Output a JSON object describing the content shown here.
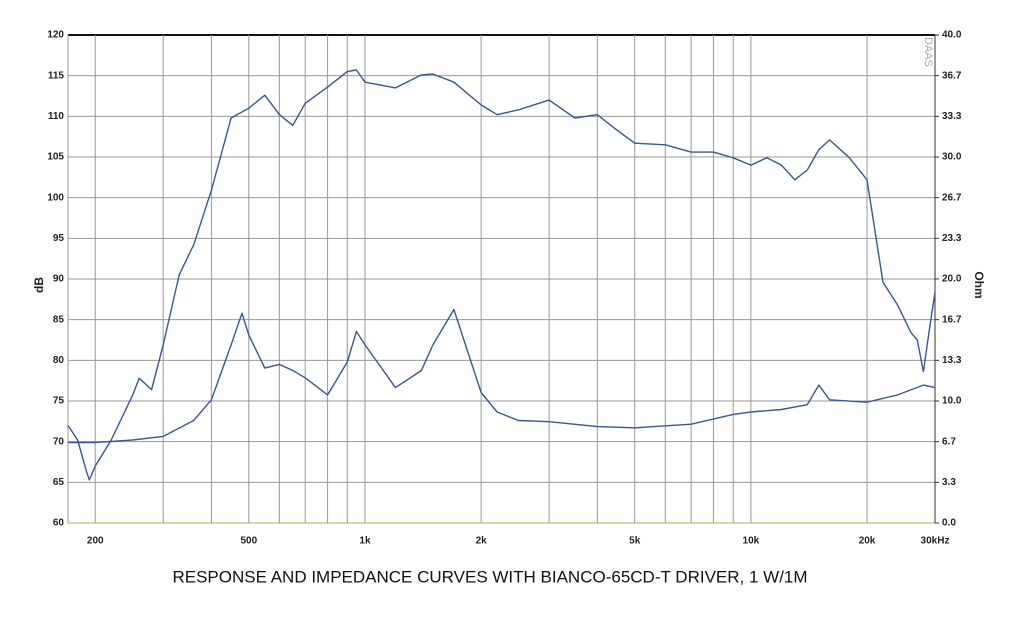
{
  "chart_data": {
    "type": "line",
    "title": "RESPONSE AND IMPEDANCE CURVES WITH BIANCO-65CD-T DRIVER, 1 W/1M",
    "y_label": "dB",
    "y2_label": "Ohm",
    "watermark": "DAAS",
    "xscale": "log",
    "grid": true,
    "xlim": [
      170,
      30000
    ],
    "xticks": [
      200,
      500,
      {
        "value": 1000,
        "label": "1k"
      },
      {
        "value": 2000,
        "label": "2k"
      },
      {
        "value": 5000,
        "label": "5k"
      },
      {
        "value": 10000,
        "label": "10k"
      },
      {
        "value": 20000,
        "label": "20k"
      },
      {
        "value": 30000,
        "label": "30kHz"
      }
    ],
    "xminor": [
      300,
      400,
      600,
      700,
      800,
      900,
      3000,
      4000,
      6000,
      7000,
      8000,
      9000
    ],
    "ylim": [
      60,
      120
    ],
    "yticks": [
      60,
      65,
      70,
      75,
      80,
      85,
      90,
      95,
      100,
      105,
      110,
      115,
      120
    ],
    "y2lim": [
      0,
      40
    ],
    "y2ticks": [
      {
        "value": 0,
        "label": "0.0"
      },
      {
        "value": 3.333,
        "label": "3.3"
      },
      {
        "value": 6.667,
        "label": "6.7"
      },
      {
        "value": 10,
        "label": "10.0"
      },
      {
        "value": 13.333,
        "label": "13.3"
      },
      {
        "value": 16.667,
        "label": "16.7"
      },
      {
        "value": 20,
        "label": "20.0"
      },
      {
        "value": 23.333,
        "label": "23.3"
      },
      {
        "value": 26.667,
        "label": "26.7"
      },
      {
        "value": 30,
        "label": "30.0"
      },
      {
        "value": 33.333,
        "label": "33.3"
      },
      {
        "value": 36.667,
        "label": "36.7"
      },
      {
        "value": 40,
        "label": "40.0"
      }
    ],
    "series": [
      {
        "color": "#3a5696",
        "x": [
          170,
          180,
          190,
          193,
          200,
          220,
          250,
          260,
          280,
          300,
          330,
          360,
          400,
          450,
          500,
          550,
          600,
          650,
          700,
          800,
          900,
          950,
          1000,
          1200,
          1400,
          1500,
          1700,
          2000,
          2200,
          2500,
          3000,
          3500,
          4000,
          4500,
          5000,
          6000,
          7000,
          8000,
          9000,
          10000,
          11000,
          12000,
          13000,
          14000,
          15000,
          16000,
          18000,
          20000,
          22000,
          24000,
          26000,
          27000,
          28000,
          29000,
          30000
        ],
        "values": [
          72.0,
          70.2,
          66.3,
          65.3,
          67.0,
          70.2,
          75.7,
          77.8,
          76.4,
          81.9,
          90.5,
          94.2,
          100.9,
          109.8,
          111.0,
          112.6,
          110.2,
          108.9,
          111.6,
          113.6,
          115.5,
          115.7,
          114.2,
          113.5,
          115.1,
          115.2,
          114.2,
          111.4,
          110.2,
          110.8,
          112.0,
          109.8,
          110.2,
          108.3,
          106.7,
          106.5,
          105.6,
          105.6,
          104.9,
          104.0,
          104.9,
          104.0,
          102.2,
          103.4,
          105.9,
          107.1,
          104.9,
          102.2,
          89.6,
          86.8,
          83.4,
          82.5,
          78.6,
          83.7,
          88.4
        ]
      },
      {
        "color": "#3a5696",
        "axis": "y2",
        "x": [
          170,
          200,
          250,
          300,
          360,
          400,
          450,
          480,
          500,
          550,
          600,
          650,
          700,
          800,
          900,
          950,
          1000,
          1200,
          1400,
          1500,
          1700,
          2000,
          2200,
          2500,
          3000,
          4000,
          5000,
          7000,
          9000,
          10000,
          12000,
          14000,
          15000,
          16000,
          20000,
          24000,
          28000,
          30000
        ],
        "values": [
          6.6,
          6.6,
          6.8,
          7.1,
          8.4,
          10.1,
          14.6,
          17.2,
          15.4,
          12.7,
          13.0,
          12.5,
          11.9,
          10.5,
          13.2,
          15.7,
          14.6,
          11.1,
          12.5,
          14.6,
          17.5,
          10.7,
          9.1,
          8.4,
          8.3,
          7.9,
          7.8,
          8.1,
          8.9,
          9.1,
          9.3,
          9.7,
          11.3,
          10.1,
          9.9,
          10.5,
          11.3,
          11.1
        ]
      }
    ]
  }
}
